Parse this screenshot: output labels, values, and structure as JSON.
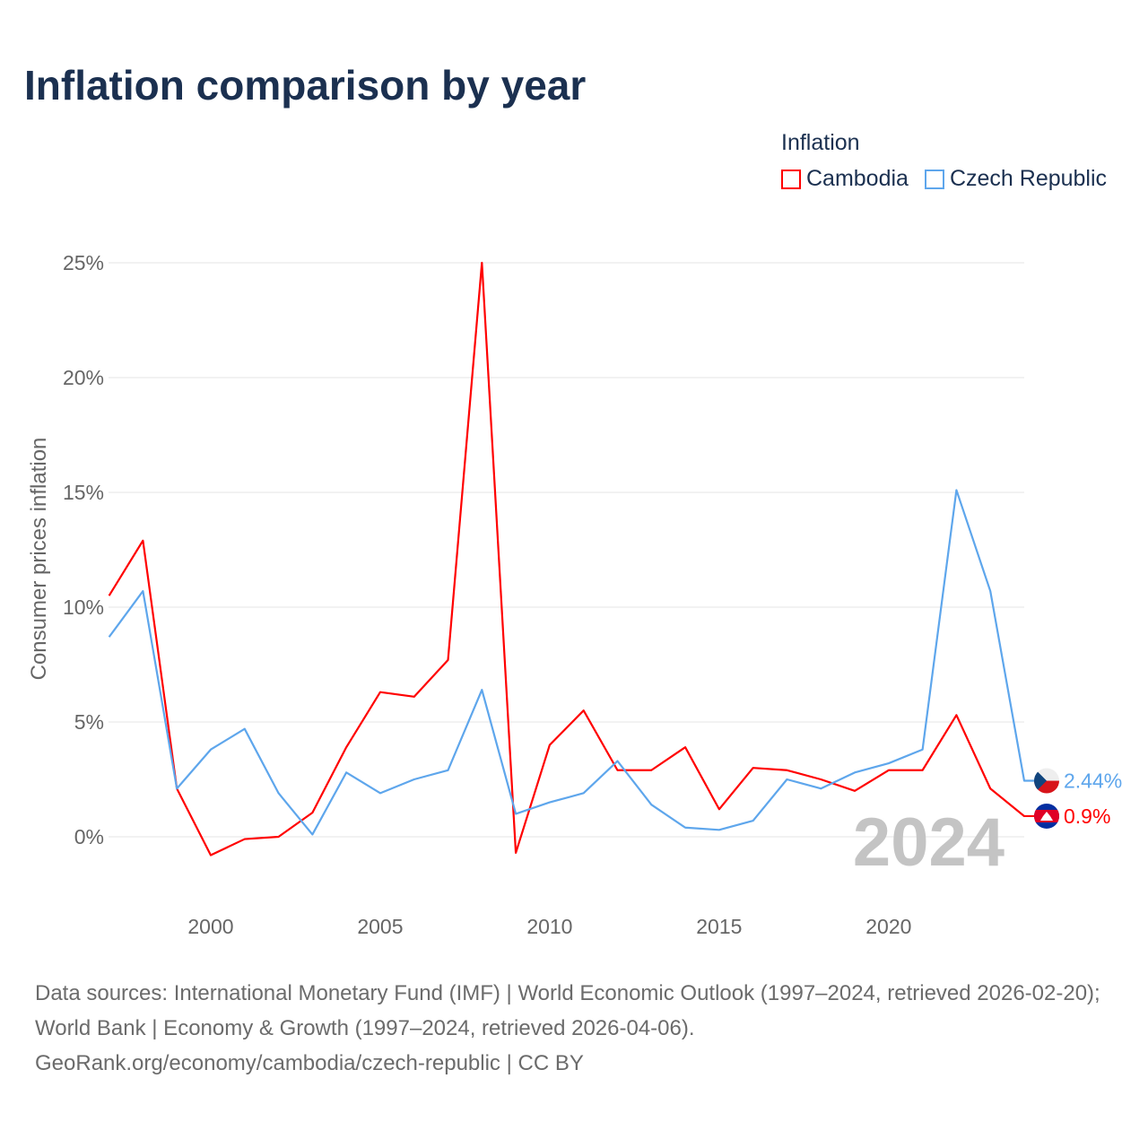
{
  "title": "Inflation comparison by year",
  "legend": {
    "title": "Inflation",
    "items": [
      {
        "label": "Cambodia",
        "color": "#ff0000"
      },
      {
        "label": "Czech Republic",
        "color": "#5ea6ec"
      }
    ]
  },
  "chart_data": {
    "type": "line",
    "title": "Inflation comparison by year",
    "xlabel": "",
    "ylabel": "Consumer prices inflation",
    "ylim": [
      -3,
      25
    ],
    "xlim": [
      1997,
      2024
    ],
    "yticks": [
      0,
      5,
      10,
      15,
      20,
      25
    ],
    "ytick_labels": [
      "0%",
      "5%",
      "10%",
      "15%",
      "20%",
      "25%"
    ],
    "xticks": [
      2000,
      2005,
      2010,
      2015,
      2020
    ],
    "xtick_labels": [
      "2000",
      "2005",
      "2010",
      "2015",
      "2020"
    ],
    "grid": true,
    "legend_position": "top-right",
    "x": [
      1997,
      1998,
      1999,
      2000,
      2001,
      2002,
      2003,
      2004,
      2005,
      2006,
      2007,
      2008,
      2009,
      2010,
      2011,
      2012,
      2013,
      2014,
      2015,
      2016,
      2017,
      2018,
      2019,
      2020,
      2021,
      2022,
      2023,
      2024
    ],
    "series": [
      {
        "name": "Cambodia",
        "color": "#ff0000",
        "end_label": "0.9%",
        "values": [
          10.5,
          12.9,
          2.1,
          -0.8,
          -0.1,
          0.0,
          1.05,
          3.9,
          6.3,
          6.1,
          7.7,
          25.0,
          -0.7,
          4.0,
          5.5,
          2.9,
          2.9,
          3.9,
          1.2,
          3.0,
          2.9,
          2.5,
          2.0,
          2.9,
          2.9,
          5.3,
          2.1,
          0.9
        ]
      },
      {
        "name": "Czech Republic",
        "color": "#5ea6ec",
        "end_label": "2.44%",
        "values": [
          8.7,
          10.7,
          2.1,
          3.8,
          4.7,
          1.9,
          0.1,
          2.8,
          1.9,
          2.5,
          2.9,
          6.4,
          1.0,
          1.5,
          1.9,
          3.3,
          1.4,
          0.4,
          0.3,
          0.7,
          2.5,
          2.1,
          2.8,
          3.2,
          3.8,
          15.1,
          10.7,
          2.44
        ]
      }
    ],
    "annotation": "2024"
  },
  "footer": {
    "sources": "Data sources: International Monetary Fund (IMF) | World Economic Outlook (1997–2024, retrieved 2026-02-20); World Bank | Economy & Growth (1997–2024, retrieved 2026-04-06).",
    "credit": "GeoRank.org/economy/cambodia/czech-republic | CC BY"
  }
}
